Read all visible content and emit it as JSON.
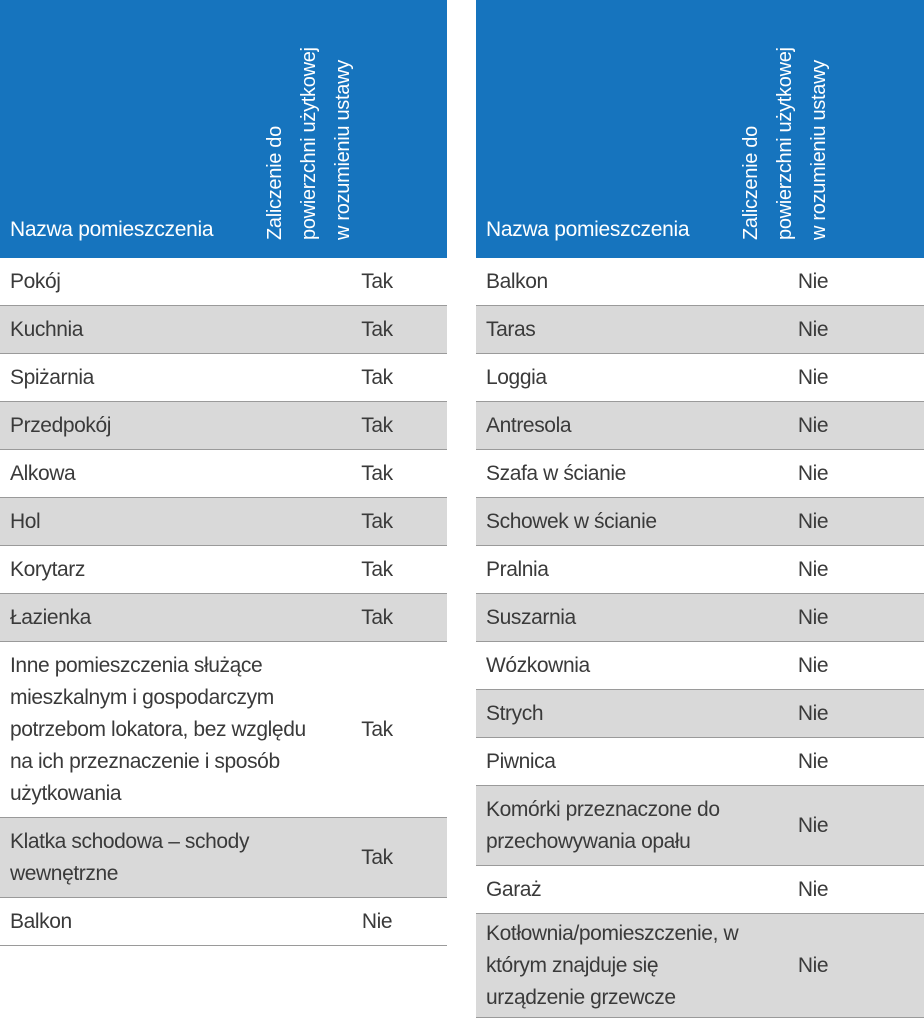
{
  "header": {
    "col_name": "Nazwa pomieszczenia",
    "col_included_lines": [
      "Zaliczenie do",
      "powierzchni użytkowej",
      "w rozumieniu ustawy"
    ]
  },
  "left_table": {
    "rows": [
      {
        "name": "Pokój",
        "value": "Tak"
      },
      {
        "name": "Kuchnia",
        "value": "Tak"
      },
      {
        "name": "Spiżarnia",
        "value": "Tak"
      },
      {
        "name": "Przedpokój",
        "value": "Tak"
      },
      {
        "name": "Alkowa",
        "value": "Tak"
      },
      {
        "name": "Hol",
        "value": "Tak"
      },
      {
        "name": "Korytarz",
        "value": "Tak"
      },
      {
        "name": "Łazienka",
        "value": "Tak"
      },
      {
        "name": "Inne pomieszczenia służące mieszkalnym i gospodarczym potrzebom lokatora, bez względu na ich przeznaczenie i sposób użytkowania",
        "value": "Tak"
      },
      {
        "name": "Klatka schodowa – schody wewnętrzne",
        "value": "Tak"
      },
      {
        "name": "Balkon",
        "value": "Nie"
      }
    ]
  },
  "right_table": {
    "rows": [
      {
        "name": "Balkon",
        "value": "Nie"
      },
      {
        "name": "Taras",
        "value": "Nie"
      },
      {
        "name": "Loggia",
        "value": "Nie"
      },
      {
        "name": "Antresola",
        "value": "Nie"
      },
      {
        "name": "Szafa w ścianie",
        "value": "Nie"
      },
      {
        "name": "Schowek w ścianie",
        "value": "Nie"
      },
      {
        "name": "Pralnia",
        "value": "Nie"
      },
      {
        "name": "Suszarnia",
        "value": "Nie"
      },
      {
        "name": "Wózkownia",
        "value": "Nie"
      },
      {
        "name": "Strych",
        "value": "Nie"
      },
      {
        "name": "Piwnica",
        "value": "Nie"
      },
      {
        "name": "Komórki przeznaczone do przechowywania opału",
        "value": "Nie"
      },
      {
        "name": "Garaż",
        "value": "Nie"
      },
      {
        "name": "Kotłownia/pomieszczenie, w którym znajduje się urządzenie grzewcze",
        "value": "Nie"
      }
    ]
  },
  "colors": {
    "header_bg": "#1674be",
    "shade_bg": "#d9d9d9",
    "border": "#9a9a9a"
  }
}
